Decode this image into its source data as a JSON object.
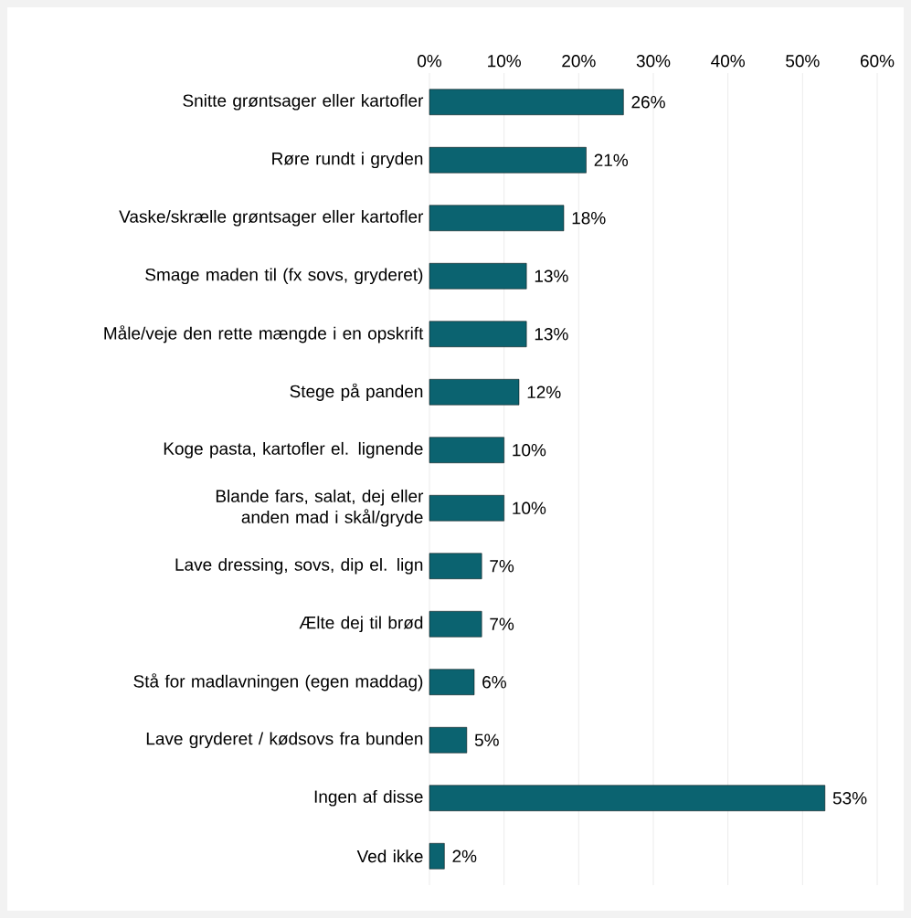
{
  "chart_data": {
    "type": "bar",
    "orientation": "horizontal",
    "categories": [
      "Snitte grøntsager eller kartofler",
      "Røre rundt i gryden",
      "Vaske/skrælle grøntsager eller kartofler",
      "Smage maden til (fx sovs, gryderet)",
      "Måle/veje den rette mængde i en opskrift",
      "Stege på panden",
      "Koge pasta, kartofler el. lignende",
      "Blande fars, salat, dej eller anden mad i skål/gryde",
      "Lave dressing, sovs, dip el. lign",
      "Ælte dej til brød",
      "Stå for madlavningen (egen maddag)",
      "Lave gryderet / kødsovs fra bunden",
      "Ingen af disse",
      "Ved ikke"
    ],
    "values": [
      26,
      21,
      18,
      13,
      13,
      12,
      10,
      10,
      7,
      7,
      6,
      5,
      53,
      2
    ],
    "value_labels": [
      "26%",
      "21%",
      "18%",
      "13%",
      "13%",
      "12%",
      "10%",
      "10%",
      "7%",
      "7%",
      "6%",
      "5%",
      "53%",
      "2%"
    ],
    "color": "#0b6370",
    "xlim": [
      0,
      60
    ],
    "xticks": [
      {
        "value": 0,
        "label": "0%"
      },
      {
        "value": 10,
        "label": "10%"
      },
      {
        "value": 20,
        "label": "20%"
      },
      {
        "value": 30,
        "label": "30%"
      },
      {
        "value": 40,
        "label": "40%"
      },
      {
        "value": 50,
        "label": "50%"
      },
      {
        "value": 60,
        "label": "60%"
      }
    ],
    "grid": "x"
  }
}
